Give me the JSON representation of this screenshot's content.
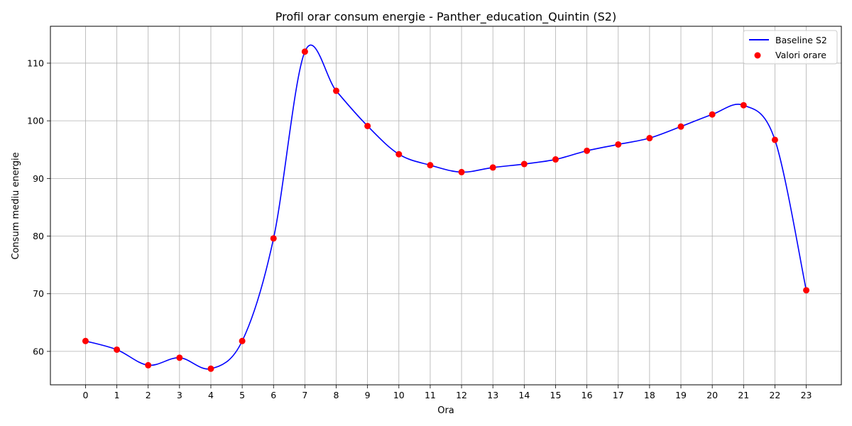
{
  "chart_data": {
    "type": "line",
    "title": "Profil orar consum energie - Panther_education_Quintin (S2)",
    "xlabel": "Ora",
    "ylabel": "Consum mediu energie",
    "x": [
      0,
      1,
      2,
      3,
      4,
      5,
      6,
      7,
      8,
      9,
      10,
      11,
      12,
      13,
      14,
      15,
      16,
      17,
      18,
      19,
      20,
      21,
      22,
      23
    ],
    "x_tick_labels": [
      "0",
      "1",
      "2",
      "3",
      "4",
      "5",
      "6",
      "7",
      "8",
      "9",
      "10",
      "11",
      "12",
      "13",
      "14",
      "15",
      "16",
      "17",
      "18",
      "19",
      "20",
      "21",
      "22",
      "23"
    ],
    "y_ticks": [
      60,
      70,
      80,
      90,
      100,
      110
    ],
    "y_tick_labels": [
      "60",
      "70",
      "80",
      "90",
      "100",
      "110"
    ],
    "xlim": [
      -1.12,
      24.12
    ],
    "ylim": [
      54.2,
      116.4
    ],
    "grid": true,
    "legend_position": "upper right",
    "series": [
      {
        "name": "Baseline S2",
        "kind": "line",
        "color": "#0000ff",
        "values": [
          61.8,
          60.3,
          57.6,
          58.9,
          57.0,
          61.8,
          79.6,
          112.0,
          105.2,
          99.1,
          94.2,
          92.3,
          91.1,
          91.9,
          92.5,
          93.3,
          94.8,
          95.9,
          97.0,
          99.0,
          101.1,
          102.7,
          96.7,
          70.6
        ]
      },
      {
        "name": "Valori orare",
        "kind": "scatter",
        "color": "#ff0000",
        "values": [
          61.8,
          60.3,
          57.6,
          58.9,
          57.0,
          61.8,
          79.6,
          112.0,
          105.2,
          99.1,
          94.2,
          92.3,
          91.1,
          91.9,
          92.5,
          93.3,
          94.8,
          95.9,
          97.0,
          99.0,
          101.1,
          102.7,
          96.7,
          70.6
        ]
      }
    ]
  }
}
